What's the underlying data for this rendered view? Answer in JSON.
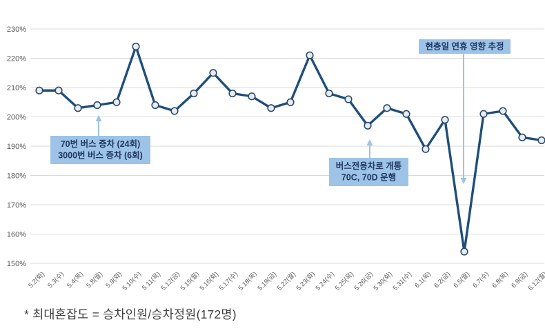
{
  "chart_data": {
    "type": "line",
    "title": "",
    "xlabel": "",
    "ylabel": "",
    "categories": [
      "5.2(화)",
      "5.3(수)",
      "5.4(목)",
      "5.8(월)",
      "5.9(화)",
      "5.10(수)",
      "5.11(목)",
      "5.12(금)",
      "5.15(월)",
      "5.16(화)",
      "5.17(수)",
      "5.18(목)",
      "5.19(금)",
      "5.22(월)",
      "5.23(화)",
      "5.24(수)",
      "5.25(목)",
      "5.26(금)",
      "5.30(화)",
      "5.31(수)",
      "6.1(목)",
      "6.2(금)",
      "6.5(월)",
      "6.7(수)",
      "6.8(목)",
      "6.9(금)",
      "6.12(월)"
    ],
    "values": [
      209,
      209,
      203,
      204,
      205,
      224,
      204,
      202,
      208,
      215,
      208,
      207,
      203,
      205,
      221,
      208,
      206,
      197,
      203,
      201,
      189,
      199,
      154,
      201,
      202,
      193,
      192
    ],
    "ylim": [
      150,
      230
    ],
    "ytick_step": 10,
    "ytick_suffix": "%",
    "grid": true,
    "legend": false
  },
  "annotations": [
    {
      "id": "bus-increase",
      "lines": [
        "70번 버스 증차 (24회)",
        "3000번 버스 증차 (6회)"
      ],
      "arrow_direction": "up"
    },
    {
      "id": "bus-lane-opening",
      "lines": [
        "버스전용차로 개통",
        "70C, 70D 운행"
      ],
      "arrow_direction": "up"
    },
    {
      "id": "holiday-effect",
      "lines": [
        "현충일 연휴 영향 추정"
      ],
      "arrow_direction": "down"
    }
  ],
  "footer": {
    "note": "* 최대혼잡도 = 승차인원/승차정원(172명)"
  },
  "colors": {
    "line": "#1f4e79",
    "marker_fill": "#e8edf3",
    "marker_stroke": "#2b4a68",
    "grid": "#d9d9d9",
    "axis_text": "#595959",
    "annotation_bg": "#9dc3e6",
    "annotation_text": "#1f3864",
    "arrow": "#9dc3e6",
    "background": "#ffffff"
  }
}
